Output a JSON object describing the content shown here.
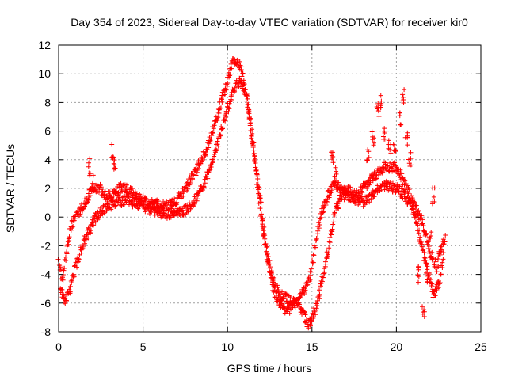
{
  "chart_data": {
    "type": "scatter",
    "title": "Day 354 of 2023, Sidereal Day-to-day VTEC variation (SDTVAR) for receiver kir0",
    "xlabel": "GPS time / hours",
    "ylabel": "SDTVAR / TECUs",
    "xlim": [
      0,
      25
    ],
    "ylim": [
      -8,
      12
    ],
    "xticks": [
      0,
      5,
      10,
      15,
      20,
      25
    ],
    "yticks": [
      -8,
      -6,
      -4,
      -2,
      0,
      2,
      4,
      6,
      8,
      10,
      12
    ],
    "grid": true,
    "marker": "+",
    "series": [
      {
        "name": "SDTVAR",
        "color": "#ff0000",
        "bands": [
          {
            "x": [
              0.0,
              0.2,
              0.4,
              0.6,
              0.8,
              1.0,
              1.3,
              1.6,
              2.0,
              2.4,
              2.8,
              3.2,
              3.6,
              4.0,
              4.5,
              5.0,
              5.5,
              6.0,
              6.5,
              7.0,
              7.5,
              8.0,
              8.5,
              9.0,
              9.5,
              10.0,
              10.3,
              10.6,
              10.9,
              11.2,
              11.5,
              11.8,
              12.1,
              12.4,
              12.7,
              13.0,
              13.3,
              13.6,
              14.0,
              14.3,
              14.6,
              14.9,
              15.2,
              15.5,
              15.8,
              16.1,
              16.4,
              16.8,
              17.2,
              17.6,
              18.0,
              18.4,
              18.8,
              19.2,
              19.6,
              20.0,
              20.4,
              20.8,
              21.2,
              21.6,
              22.0,
              22.4,
              22.8
            ],
            "y": [
              -3.0,
              -4.5,
              -3.0,
              -1.5,
              -0.5,
              0.0,
              0.5,
              1.0,
              2.0,
              2.0,
              1.5,
              1.5,
              2.0,
              2.0,
              1.5,
              1.2,
              1.0,
              0.8,
              0.8,
              1.2,
              2.0,
              3.0,
              4.0,
              5.5,
              7.5,
              9.5,
              10.8,
              11.0,
              10.0,
              8.0,
              5.5,
              2.5,
              -0.5,
              -3.0,
              -5.0,
              -6.0,
              -6.5,
              -6.5,
              -6.0,
              -5.5,
              -5.0,
              -4.0,
              -2.0,
              0.0,
              1.0,
              2.0,
              2.2,
              2.0,
              1.8,
              1.5,
              2.0,
              2.5,
              3.0,
              3.5,
              3.5,
              3.5,
              2.5,
              1.5,
              0.5,
              -0.5,
              -2.5,
              -3.5,
              -1.5
            ]
          },
          {
            "x": [
              0.1,
              0.4,
              0.7,
              1.0,
              1.4,
              1.8,
              2.2,
              2.6,
              3.0,
              3.5,
              4.0,
              4.5,
              5.0,
              5.5,
              6.0,
              6.5,
              7.0,
              7.5,
              8.0,
              8.5,
              9.0,
              9.5,
              10.0,
              10.4,
              10.8,
              11.1,
              11.4,
              11.7,
              12.0,
              12.3,
              12.6,
              12.9,
              13.2,
              13.6,
              14.0,
              14.4,
              14.8,
              15.2,
              15.6,
              16.0,
              16.4,
              16.8,
              17.2,
              17.6,
              18.0,
              18.5,
              19.0,
              19.5,
              20.0,
              20.5,
              21.0,
              21.4,
              21.8,
              22.2,
              22.6,
              22.9
            ],
            "y": [
              -5.0,
              -6.0,
              -5.0,
              -3.5,
              -2.0,
              -1.0,
              0.0,
              0.5,
              0.8,
              1.0,
              1.2,
              1.0,
              0.8,
              0.5,
              0.3,
              0.2,
              0.3,
              0.5,
              1.0,
              2.0,
              3.5,
              5.5,
              7.5,
              9.0,
              9.5,
              8.5,
              6.0,
              3.0,
              0.0,
              -2.5,
              -4.0,
              -5.0,
              -5.5,
              -5.8,
              -6.0,
              -6.5,
              -7.5,
              -6.5,
              -4.5,
              -2.0,
              0.5,
              1.5,
              1.5,
              1.2,
              1.0,
              1.5,
              2.0,
              2.2,
              2.0,
              1.5,
              0.5,
              -1.5,
              -3.5,
              -5.5,
              -4.5,
              -1.0
            ]
          },
          {
            "x": [
              1.8,
              2.0,
              3.2,
              3.3,
              16.2,
              16.4,
              18.3,
              18.6,
              18.9,
              19.1,
              19.3,
              19.6,
              19.9,
              20.2,
              20.4,
              20.6,
              20.8,
              21.3,
              21.6,
              21.8,
              22.0,
              22.2
            ],
            "y": [
              3.5,
              2.5,
              4.5,
              3.8,
              4.0,
              3.0,
              4.5,
              5.5,
              7.5,
              8.0,
              6.0,
              5.0,
              4.5,
              7.0,
              8.5,
              5.5,
              4.0,
              -4.0,
              -6.5,
              -4.0,
              -1.5,
              1.5
            ]
          }
        ]
      }
    ]
  }
}
